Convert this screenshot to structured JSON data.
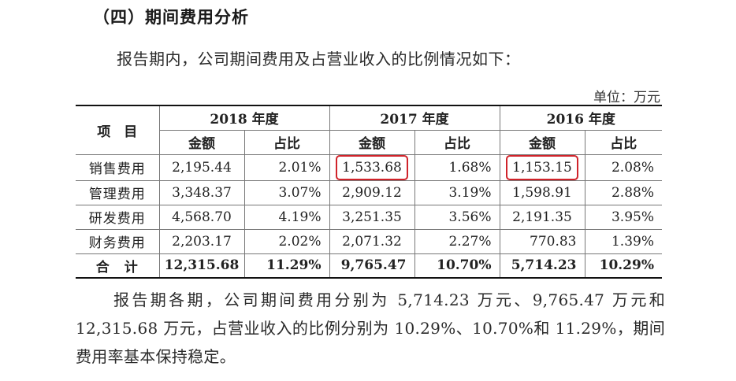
{
  "section_title": "（四）期间费用分析",
  "intro": "报告期内，公司期间费用及占营业收入的比例情况如下：",
  "unit": "单位：万元",
  "table": {
    "item_header": "项　目",
    "years": [
      "2018 年度",
      "2017 年度",
      "2016 年度"
    ],
    "sub_headers": [
      "金额",
      "占比"
    ],
    "rows": [
      {
        "label": "销售费用",
        "cells": [
          "2,195.44",
          "2.01%",
          "1,533.68",
          "1.68%",
          "1,153.15",
          "2.08%"
        ]
      },
      {
        "label": "管理费用",
        "cells": [
          "3,348.37",
          "3.07%",
          "2,909.12",
          "3.19%",
          "1,598.91",
          "2.88%"
        ]
      },
      {
        "label": "研发费用",
        "cells": [
          "4,568.70",
          "4.19%",
          "3,251.35",
          "3.56%",
          "2,191.35",
          "3.95%"
        ]
      },
      {
        "label": "财务费用",
        "cells": [
          "2,203.17",
          "2.02%",
          "2,071.32",
          "2.27%",
          "770.83",
          "1.39%"
        ]
      }
    ],
    "total": {
      "label": "合　计",
      "cells": [
        "12,315.68",
        "11.29%",
        "9,765.47",
        "10.70%",
        "5,714.23",
        "10.29%"
      ]
    },
    "highlight_color": "#d0232a"
  },
  "paragraph": "报告期各期，公司期间费用分别为 5,714.23 万元、9,765.47 万元和 12,315.68 万元，占营业收入的比例分别为 10.29%、10.70%和 11.29%，期间费用率基本保持稳定。"
}
